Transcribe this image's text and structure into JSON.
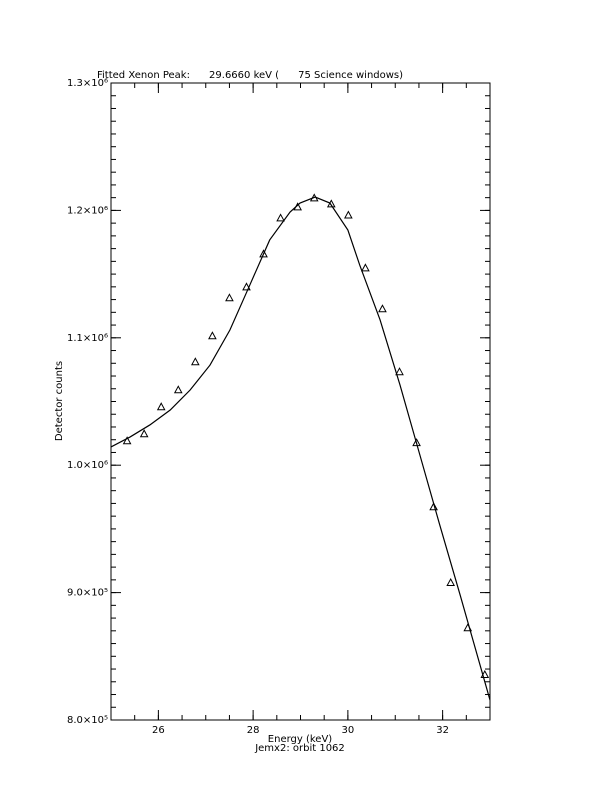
{
  "chart_data": {
    "type": "line",
    "title": "Fitted Xenon Peak:      29.6660 keV (      75 Science windows)",
    "x_label": "Energy (keV)",
    "subtitle": "Jemx2: orbit 1062",
    "y_label": "Detector counts",
    "xlim": [
      25,
      33
    ],
    "xticks": [
      26,
      28,
      30,
      32
    ],
    "ylim": [
      800000,
      1300000
    ],
    "yticks": [
      {
        "value": 800000,
        "label": "8.0×10⁵"
      },
      {
        "value": 900000,
        "label": "9.0×10⁵"
      },
      {
        "value": 1000000,
        "label": "1.0×10⁶"
      },
      {
        "value": 1100000,
        "label": "1.1×10⁶"
      },
      {
        "value": 1200000,
        "label": "1.2×10⁶"
      },
      {
        "value": 1300000,
        "label": "1.3×10⁶"
      }
    ],
    "minor_ticks": {
      "x": 4,
      "y": 10
    },
    "series": [
      {
        "style": "line",
        "color": "#000000",
        "x": [
          25.0,
          25.4,
          25.82,
          26.25,
          26.67,
          27.09,
          27.51,
          27.93,
          28.35,
          28.78,
          28.99,
          29.31,
          29.62,
          30.0,
          30.25,
          30.68,
          31.1,
          31.52,
          31.94,
          32.37,
          33.0
        ],
        "values": [
          1014300,
          1022100,
          1031600,
          1043300,
          1059000,
          1078600,
          1106100,
          1141400,
          1176800,
          1198700,
          1205800,
          1210500,
          1205800,
          1184600,
          1157100,
          1114000,
          1063000,
          1008000,
          953000,
          898100,
          815600
        ]
      },
      {
        "style": "triangle",
        "color": "#000000",
        "x": [
          25.34,
          25.7,
          26.06,
          26.42,
          26.78,
          27.14,
          27.5,
          27.86,
          28.22,
          28.58,
          28.94,
          29.29,
          29.65,
          30.01,
          30.37,
          30.73,
          31.09,
          31.45,
          31.81,
          32.17,
          32.53,
          32.89
        ],
        "values": [
          1018800,
          1024300,
          1045500,
          1058800,
          1080800,
          1101200,
          1131000,
          1139600,
          1165500,
          1193700,
          1202400,
          1209400,
          1204700,
          1196000,
          1154500,
          1122400,
          1073000,
          1017300,
          967000,
          907500,
          872000,
          835300
        ]
      }
    ]
  }
}
